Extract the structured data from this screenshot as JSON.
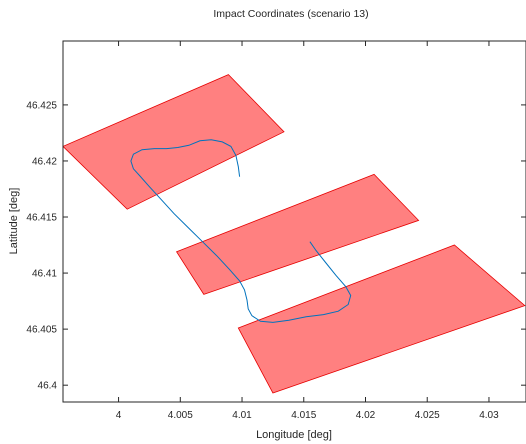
{
  "chart_data": {
    "type": "line",
    "title": "Impact Coordinates (scenario 13)",
    "xlabel": "Longitude [deg]",
    "ylabel": "Latitude [deg]",
    "xlim": [
      3.9955,
      4.033
    ],
    "ylim": [
      46.3985,
      46.4307
    ],
    "x_ticks": [
      4.0,
      4.005,
      4.01,
      4.015,
      4.02,
      4.025,
      4.03
    ],
    "y_ticks": [
      46.4,
      46.405,
      46.41,
      46.415,
      46.42,
      46.425
    ],
    "x_tick_labels": [
      "4",
      "4.005",
      "4.01",
      "4.015",
      "4.02",
      "4.025",
      "4.03"
    ],
    "y_tick_labels": [
      "46.4",
      "46.405",
      "46.41",
      "46.415",
      "46.42",
      "46.425"
    ],
    "grid": false,
    "colors": {
      "zone_fill": "#ff8080",
      "zone_stroke": "#e60000",
      "trajectory": "#0072bd",
      "axes": "#262626"
    },
    "zones": [
      {
        "name": "zone-1",
        "points": [
          [
            3.9955,
            46.4213
          ],
          [
            4.0089,
            46.4277
          ],
          [
            4.0134,
            46.4226
          ],
          [
            4.0007,
            46.4157
          ]
        ]
      },
      {
        "name": "zone-2",
        "points": [
          [
            4.0047,
            46.4119
          ],
          [
            4.0207,
            46.4188
          ],
          [
            4.0243,
            46.4147
          ],
          [
            4.0069,
            46.4081
          ]
        ]
      },
      {
        "name": "zone-3",
        "points": [
          [
            4.0097,
            46.4051
          ],
          [
            4.0272,
            46.4125
          ],
          [
            4.0329,
            46.4071
          ],
          [
            4.0125,
            46.3993
          ]
        ]
      }
    ],
    "series": [
      {
        "points": [
          [
            4.0098,
            46.4186
          ],
          [
            4.0097,
            46.4195
          ],
          [
            4.0095,
            46.4205
          ],
          [
            4.0091,
            46.4213
          ],
          [
            4.0084,
            46.4217
          ],
          [
            4.0075,
            46.4219
          ],
          [
            4.0066,
            46.4218
          ],
          [
            4.0057,
            46.4214
          ],
          [
            4.0048,
            46.4212
          ],
          [
            4.0039,
            46.4211
          ],
          [
            4.0029,
            46.4211
          ],
          [
            4.0019,
            46.421
          ],
          [
            4.0012,
            46.4206
          ],
          [
            4.001,
            46.42
          ],
          [
            4.0012,
            46.4193
          ],
          [
            4.0017,
            46.4187
          ],
          [
            4.0025,
            46.4177
          ],
          [
            4.0035,
            46.4165
          ],
          [
            4.0045,
            46.4153
          ],
          [
            4.0056,
            46.4141
          ],
          [
            4.0068,
            46.4128
          ],
          [
            4.008,
            46.4115
          ],
          [
            4.009,
            46.4103
          ],
          [
            4.0098,
            46.4093
          ],
          [
            4.0102,
            46.4085
          ],
          [
            4.0104,
            46.4076
          ],
          [
            4.0105,
            46.4068
          ],
          [
            4.0108,
            46.4062
          ],
          [
            4.0115,
            46.4057
          ],
          [
            4.0125,
            46.4056
          ],
          [
            4.0138,
            46.4058
          ],
          [
            4.0152,
            46.4061
          ],
          [
            4.0166,
            46.4063
          ],
          [
            4.0178,
            46.4066
          ],
          [
            4.0186,
            46.4072
          ],
          [
            4.0188,
            46.408
          ],
          [
            4.0184,
            46.4088
          ],
          [
            4.0176,
            46.4098
          ],
          [
            4.0168,
            46.4109
          ],
          [
            4.016,
            46.412
          ],
          [
            4.0155,
            46.4128
          ]
        ]
      }
    ]
  }
}
